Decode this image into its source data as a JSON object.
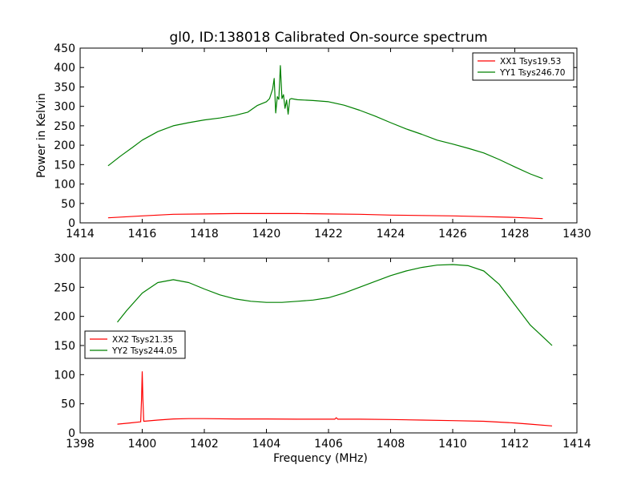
{
  "figure": {
    "title": "gl0, ID:138018 Calibrated On-source spectrum"
  },
  "chart_data": [
    {
      "type": "line",
      "title": "gl0, ID:138018 Calibrated On-source spectrum",
      "xlabel": "",
      "ylabel": "Power in Kelvin",
      "xlim": [
        1414,
        1430
      ],
      "ylim": [
        0,
        450
      ],
      "xticks": [
        "1414",
        "1416",
        "1418",
        "1420",
        "1422",
        "1424",
        "1426",
        "1428",
        "1430"
      ],
      "yticks": [
        "0",
        "50",
        "100",
        "150",
        "200",
        "250",
        "300",
        "350",
        "400",
        "450"
      ],
      "grid": false,
      "legend_position": "top-right",
      "series": [
        {
          "name": "XX1 Tsys19.53",
          "color": "#ff0000",
          "x": [
            1414.9,
            1416.0,
            1417.0,
            1418.0,
            1419.0,
            1420.0,
            1421.0,
            1422.0,
            1423.0,
            1424.0,
            1425.0,
            1426.0,
            1427.0,
            1428.0,
            1428.9
          ],
          "y": [
            13,
            18,
            22,
            23,
            24,
            24,
            24,
            23,
            22,
            20,
            19,
            18,
            16,
            14,
            11
          ]
        },
        {
          "name": "YY1 Tsys246.70",
          "color": "#008000",
          "x": [
            1414.9,
            1415.3,
            1415.7,
            1416.0,
            1416.5,
            1417.0,
            1417.5,
            1418.0,
            1418.5,
            1419.0,
            1419.4,
            1419.7,
            1420.0,
            1420.1,
            1420.2,
            1420.25,
            1420.3,
            1420.35,
            1420.4,
            1420.45,
            1420.5,
            1420.55,
            1420.6,
            1420.65,
            1420.7,
            1420.75,
            1420.8,
            1421.0,
            1421.5,
            1422.0,
            1422.5,
            1423.0,
            1423.5,
            1424.0,
            1424.5,
            1425.0,
            1425.5,
            1426.0,
            1426.5,
            1427.0,
            1427.5,
            1428.0,
            1428.5,
            1428.9
          ],
          "y": [
            147,
            172,
            195,
            213,
            235,
            250,
            258,
            265,
            270,
            277,
            285,
            302,
            312,
            320,
            345,
            372,
            283,
            325,
            318,
            405,
            320,
            330,
            295,
            316,
            280,
            318,
            320,
            317,
            315,
            312,
            303,
            290,
            275,
            258,
            242,
            228,
            213,
            203,
            192,
            180,
            163,
            144,
            126,
            114
          ]
        }
      ]
    },
    {
      "type": "line",
      "title": "",
      "xlabel": "Frequency (MHz)",
      "ylabel": "",
      "xlim": [
        1398,
        1414
      ],
      "ylim": [
        0,
        300
      ],
      "xticks": [
        "1398",
        "1400",
        "1402",
        "1404",
        "1406",
        "1408",
        "1410",
        "1412",
        "1414"
      ],
      "yticks": [
        "0",
        "50",
        "100",
        "150",
        "200",
        "250",
        "300"
      ],
      "grid": false,
      "legend_position": "center-left",
      "series": [
        {
          "name": "XX2 Tsys21.35",
          "color": "#ff0000",
          "x": [
            1399.2,
            1399.6,
            1399.95,
            1399.98,
            1400.0,
            1400.02,
            1400.05,
            1400.5,
            1401.0,
            1401.5,
            1402.0,
            1403.0,
            1404.0,
            1405.0,
            1406.0,
            1406.2,
            1406.25,
            1406.3,
            1406.4,
            1407.0,
            1408.0,
            1409.0,
            1410.0,
            1411.0,
            1412.0,
            1412.5,
            1413.2
          ],
          "y": [
            15,
            17,
            19,
            60,
            105,
            60,
            20,
            22,
            24,
            24.5,
            24.5,
            24,
            24,
            23.5,
            23.5,
            23.5,
            26,
            23.5,
            23.5,
            23.5,
            23,
            22,
            21,
            20,
            17,
            15,
            12
          ]
        },
        {
          "name": "YY2 Tsys244.05",
          "color": "#008000",
          "x": [
            1399.2,
            1399.5,
            1400.0,
            1400.5,
            1401.0,
            1401.5,
            1402.0,
            1402.5,
            1403.0,
            1403.5,
            1404.0,
            1404.5,
            1405.0,
            1405.5,
            1406.0,
            1406.5,
            1407.0,
            1407.5,
            1408.0,
            1408.5,
            1409.0,
            1409.5,
            1410.0,
            1410.5,
            1411.0,
            1411.5,
            1412.0,
            1412.5,
            1413.0,
            1413.2
          ],
          "y": [
            190,
            210,
            240,
            258,
            263,
            258,
            247,
            237,
            230,
            226,
            224,
            224,
            226,
            228,
            232,
            240,
            250,
            260,
            270,
            278,
            284,
            288,
            289,
            287,
            278,
            255,
            220,
            185,
            160,
            150
          ]
        }
      ]
    }
  ]
}
